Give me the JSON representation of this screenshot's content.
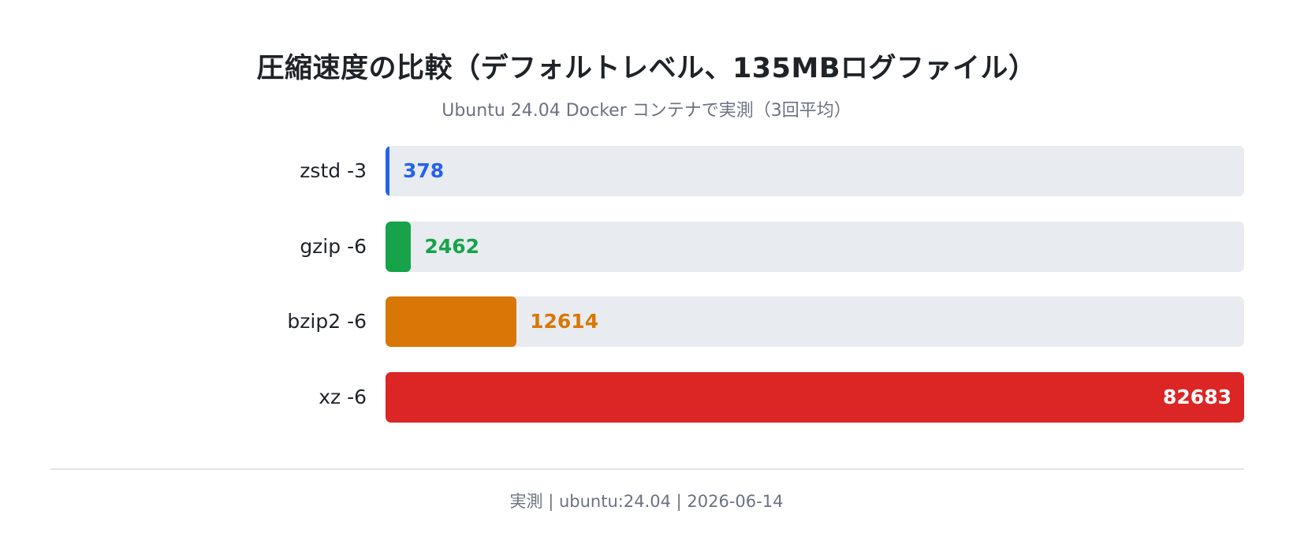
{
  "header": {
    "title": "圧縮速度の比較（デフォルトレベル、135MBログファイル）",
    "subtitle": "Ubuntu 24.04 Docker コンテナで実測（3回平均）"
  },
  "footer": {
    "text": "実測 | ubuntu:24.04 | 2026-06-14"
  },
  "chart_data": {
    "type": "bar",
    "orientation": "horizontal",
    "title": "圧縮速度の比較（デフォルトレベル、135MBログファイル）",
    "subtitle": "Ubuntu 24.04 Docker コンテナで実測（3回平均）",
    "categories": [
      "zstd -3",
      "gzip -6",
      "bzip2 -6",
      "xz -6"
    ],
    "values": [
      378,
      2462,
      12614,
      82683
    ],
    "value_labels": [
      "378",
      "2462",
      "12614",
      "82683"
    ],
    "colors": [
      "#2563eb",
      "#16a34a",
      "#d97706",
      "#dc2626"
    ],
    "track_color": "#e8ebef",
    "xlim": [
      0,
      82683
    ],
    "grid": false,
    "legend": "none",
    "xlabel": "",
    "ylabel": ""
  }
}
